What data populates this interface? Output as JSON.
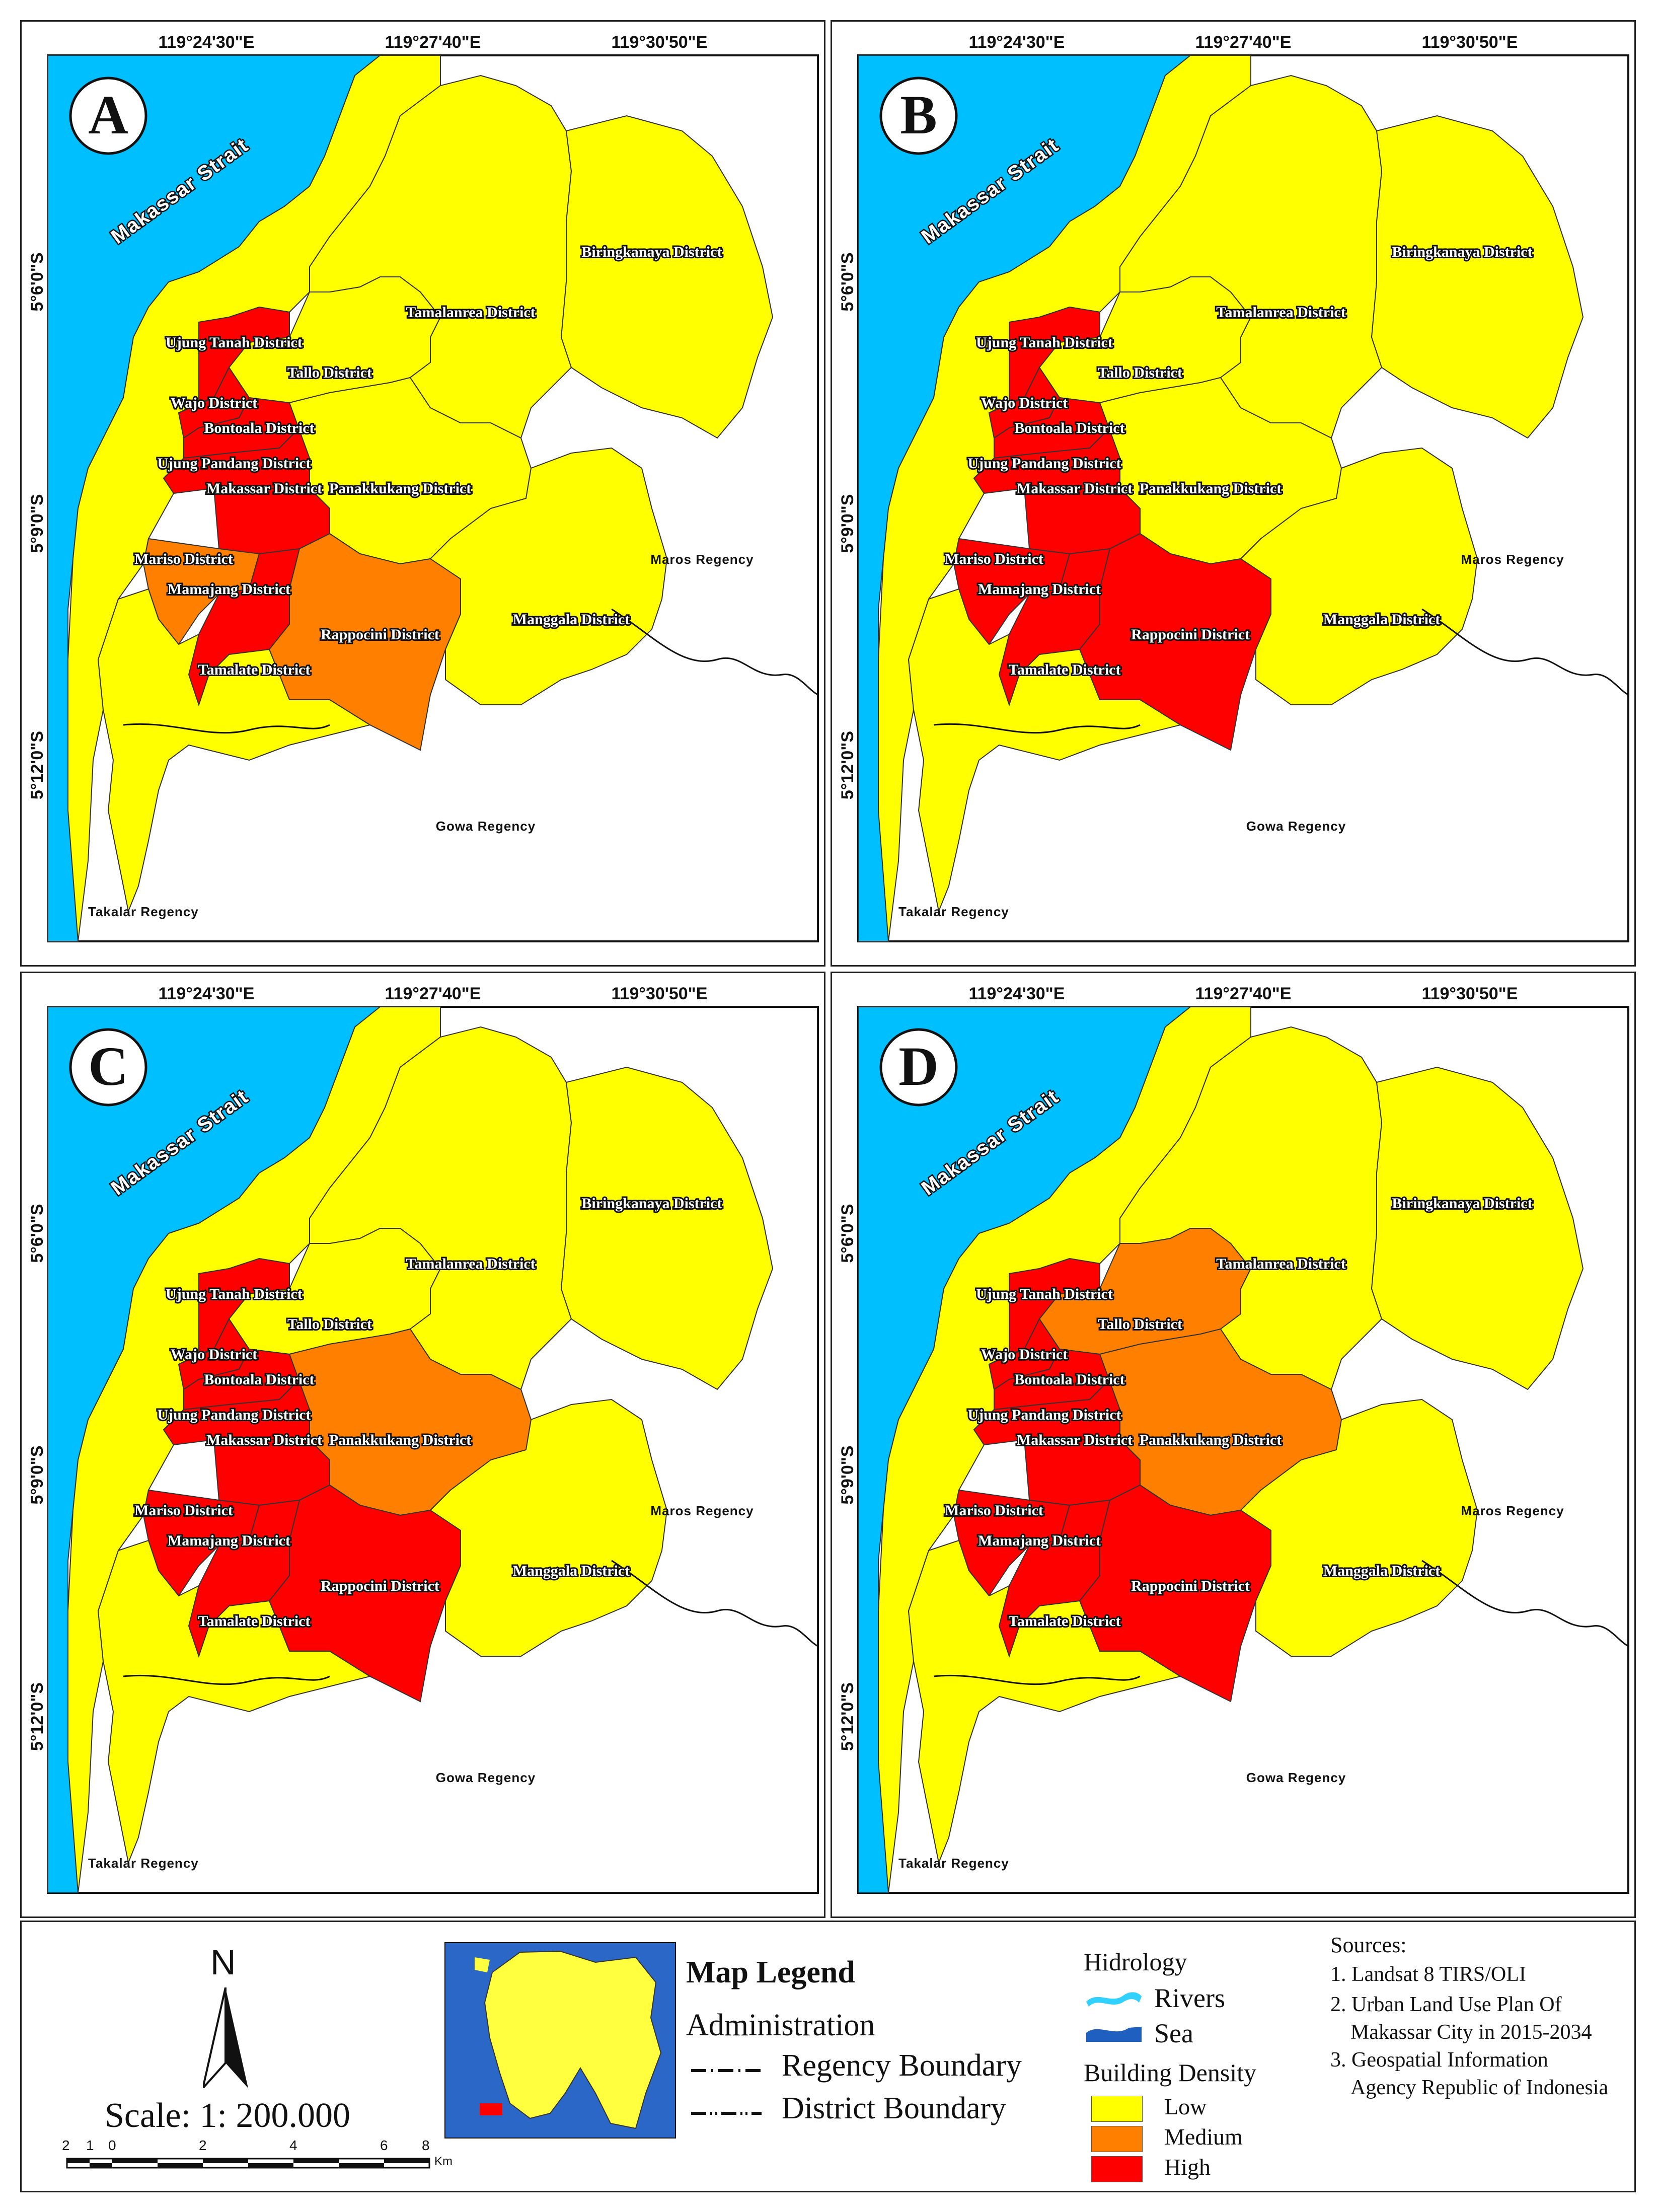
{
  "maps": [
    {
      "letter": "A",
      "variant": "A"
    },
    {
      "letter": "B",
      "variant": "B"
    },
    {
      "letter": "C",
      "variant": "C"
    },
    {
      "letter": "D",
      "variant": "D"
    }
  ],
  "coords": {
    "lon": [
      "119°24'30\"E",
      "119°27'40\"E",
      "119°30'50\"E"
    ],
    "lat": [
      "5°6'0\"S",
      "5°9'0\"S",
      "5°12'0\"S"
    ]
  },
  "place_labels": {
    "strait": "Makassar Strait",
    "biringkanaya": "Biringkanaya District",
    "tamalanrea": "Tamalanrea District",
    "ujung_tanah": "Ujung Tanah District",
    "tallo": "Tallo District",
    "wajo": "Wajo District",
    "bontoala": "Bontoala District",
    "ujung_pandang": "Ujung Pandang District",
    "makassar": "Makassar District",
    "panakkukang": "Panakkukang District",
    "mariso": "Mariso District",
    "mamajang": "Mamajang District",
    "rappocini": "Rappocini District",
    "manggala": "Manggala District",
    "tamalate": "Tamalate District",
    "maros": "Maros Regency",
    "gowa": "Gowa Regency",
    "takalar": "Takalar Regency"
  },
  "legend": {
    "north": "N",
    "scale": "Scale: 1: 200.000",
    "scale_ticks": [
      "2",
      "1",
      "0",
      "2",
      "4",
      "6",
      "8"
    ],
    "scale_unit": "Km",
    "title": "Map Legend",
    "administration": "Administration",
    "regency_boundary": "Regency Boundary",
    "district_boundary": "District Boundary",
    "hidrology": "Hidrology",
    "rivers": "Rivers",
    "sea": "Sea",
    "building_density": "Building Density",
    "low": "Low",
    "medium": "Medium",
    "high": "High",
    "sources_title": "Sources:",
    "sources": [
      "1. Landsat 8 TIRS/OLI",
      "2. Urban Land Use Plan Of",
      "Makassar City in 2015-2034",
      "3. Geospatial Information",
      "Agency Republic of Indonesia"
    ]
  },
  "colors": {
    "sea": "#00bfff",
    "low": "#ffff00",
    "medium": "#ff8000",
    "high": "#ff0000",
    "outside": "#ffffff"
  }
}
